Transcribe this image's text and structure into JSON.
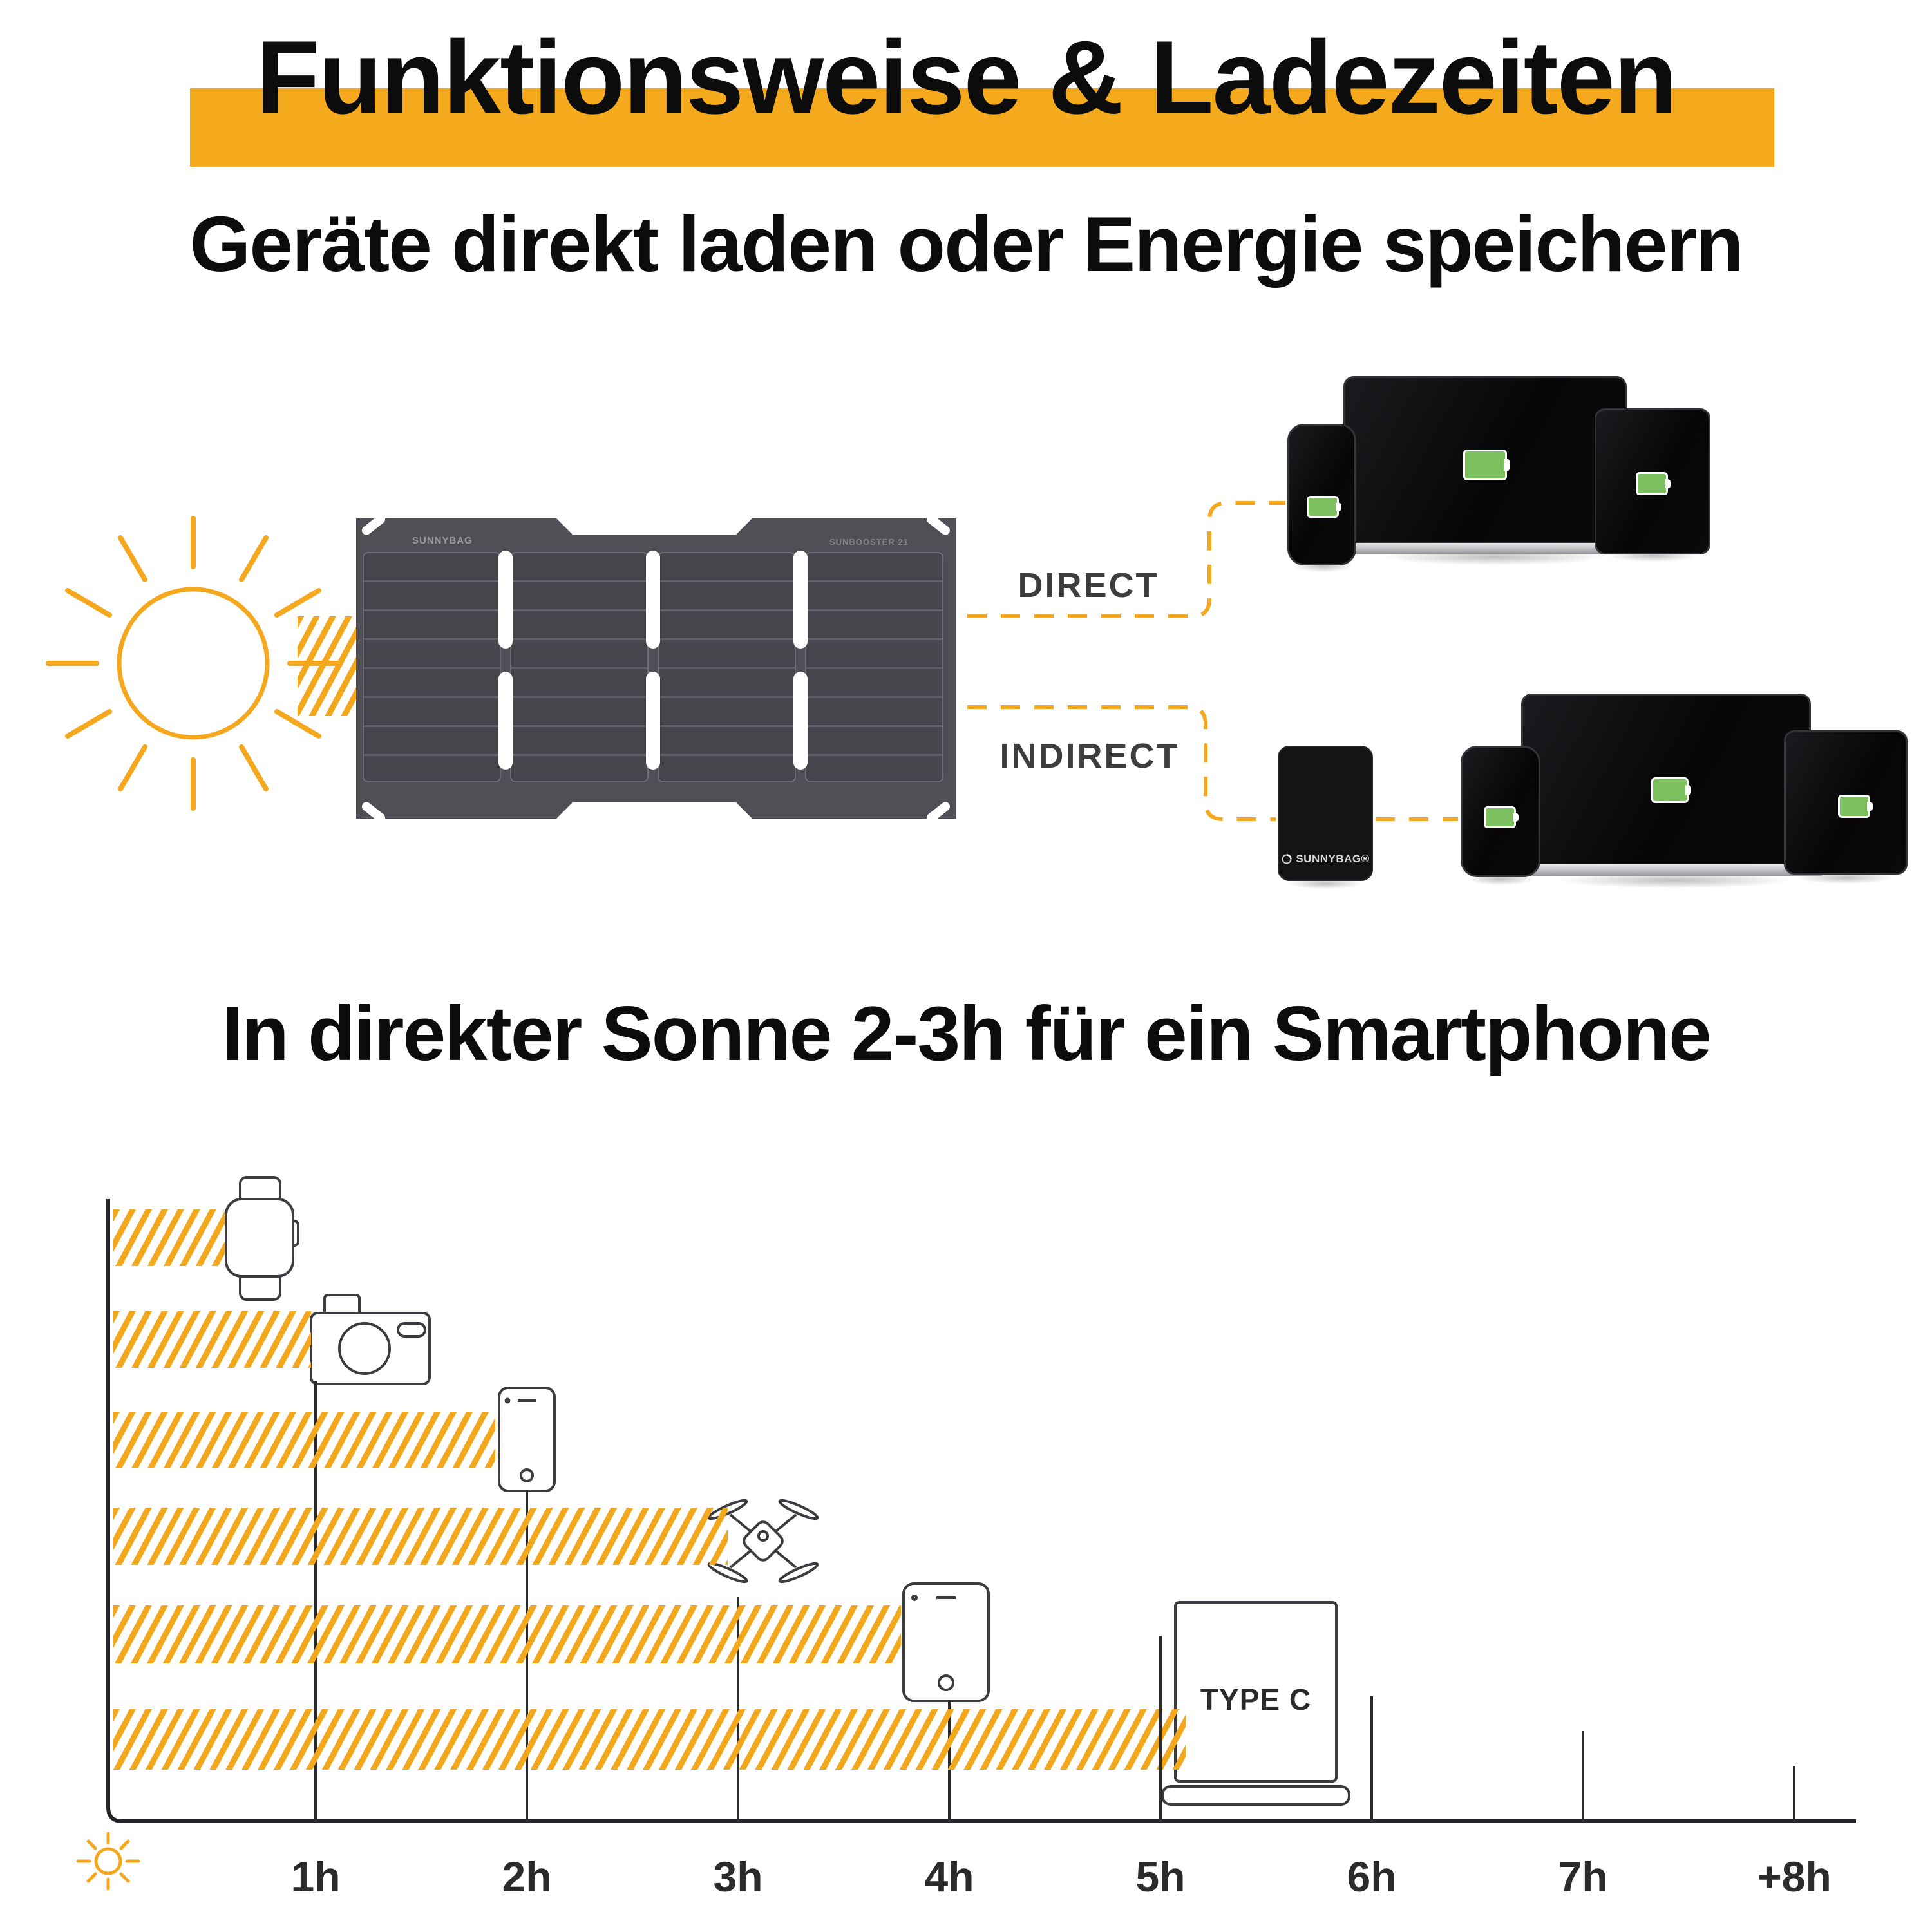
{
  "header": {
    "title": "Funktionsweise & Ladezeiten",
    "subtitle": "Geräte direkt laden oder Energie speichern"
  },
  "accent_color": "#F5A71D",
  "battery_color": "#7CC05F",
  "diagram": {
    "direct_label": "DIRECT",
    "indirect_label": "INDIRECT",
    "panel_brand": "SUNNYBAG",
    "panel_model": "SUNBOOSTER 21",
    "powerbank_brand": "SUNNYBAG®",
    "direct_devices": [
      "smartphone",
      "laptop",
      "tablet"
    ],
    "indirect_devices": [
      "powerbank",
      "smartphone",
      "laptop",
      "tablet"
    ]
  },
  "chart": {
    "heading": "In direkter Sonne 2-3h für ein Smartphone"
  },
  "chart_data": {
    "type": "bar",
    "orientation": "horizontal",
    "title": "In direkter Sonne 2-3h für ein Smartphone",
    "x_ticks": [
      "1h",
      "2h",
      "3h",
      "4h",
      "5h",
      "6h",
      "7h",
      "+8h"
    ],
    "x_origin_icon": "sun-icon",
    "grid": false,
    "rows": [
      {
        "key": "smartwatch",
        "device": "Smartwatch",
        "icon": "smartwatch-icon",
        "bar_hours": 0.57,
        "charge_time_h": null
      },
      {
        "key": "camera",
        "device": "Kamera",
        "icon": "camera-icon",
        "bar_hours": 0.98,
        "charge_time_h": 1
      },
      {
        "key": "smartphone",
        "device": "Smartphone",
        "icon": "smartphone-icon",
        "bar_hours": 1.85,
        "charge_time_h": 2
      },
      {
        "key": "drone",
        "device": "Drohne",
        "icon": "drone-icon",
        "bar_hours": 2.95,
        "charge_time_h": 3
      },
      {
        "key": "tablet",
        "device": "Tablet",
        "icon": "tablet-icon",
        "bar_hours": 3.77,
        "charge_time_h": 4
      },
      {
        "key": "laptop",
        "device": "Laptop",
        "icon": "laptop-icon",
        "bar_hours": 5.12,
        "charge_time_h": [
          5,
          6
        ],
        "label": "TYPE C"
      }
    ],
    "extra_tick_hours": [
      7,
      8
    ]
  }
}
